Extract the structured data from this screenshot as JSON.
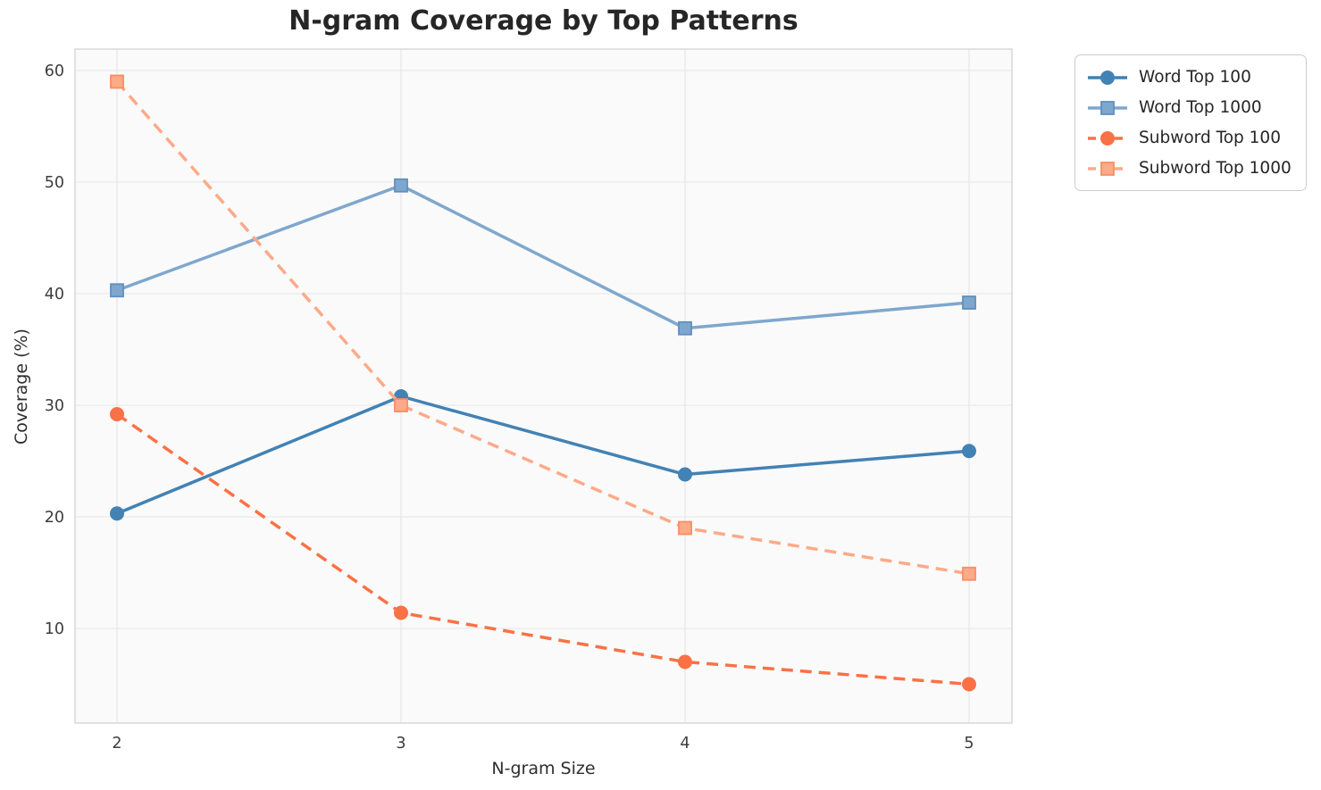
{
  "chart_data": {
    "type": "line",
    "title": "N-gram Coverage by Top Patterns",
    "xlabel": "N-gram Size",
    "ylabel": "Coverage (%)",
    "x": [
      2,
      3,
      4,
      5
    ],
    "xtick_labels": [
      "2",
      "3",
      "4",
      "5"
    ],
    "ytick_values": [
      10,
      20,
      30,
      40,
      50,
      60
    ],
    "ytick_labels": [
      "10",
      "20",
      "30",
      "40",
      "50",
      "60"
    ],
    "xlim": [
      1.85,
      5.15
    ],
    "ylim": [
      1.5,
      61.9
    ],
    "grid": true,
    "legend_position": "outside-top-right",
    "series": [
      {
        "name": "Word Top 100",
        "values": [
          20.3,
          30.8,
          23.8,
          25.9
        ],
        "color": "#4282b4",
        "edge": "#30689a",
        "marker": "circle",
        "dash": "solid"
      },
      {
        "name": "Word Top 1000",
        "values": [
          40.3,
          49.7,
          36.9,
          39.2
        ],
        "color": "#7fa7ce",
        "edge": "#5f8fbe",
        "marker": "square",
        "dash": "solid"
      },
      {
        "name": "Subword Top 100",
        "values": [
          29.2,
          11.4,
          7.0,
          5.0
        ],
        "color": "#fa7145",
        "edge": "#e4572e",
        "marker": "circle",
        "dash": "dashed"
      },
      {
        "name": "Subword Top 1000",
        "values": [
          59.0,
          30.0,
          19.0,
          14.9
        ],
        "color": "#fcaa88",
        "edge": "#fa8c63",
        "marker": "square",
        "dash": "dashed"
      }
    ],
    "style": {
      "plot_bg": "#fafafa",
      "grid_color": "#e9e9e9",
      "spine_color": "#d9d9d9",
      "tick_color": "#3d3d3d",
      "line_width": 3.5,
      "dash_pattern": "13 8"
    }
  }
}
